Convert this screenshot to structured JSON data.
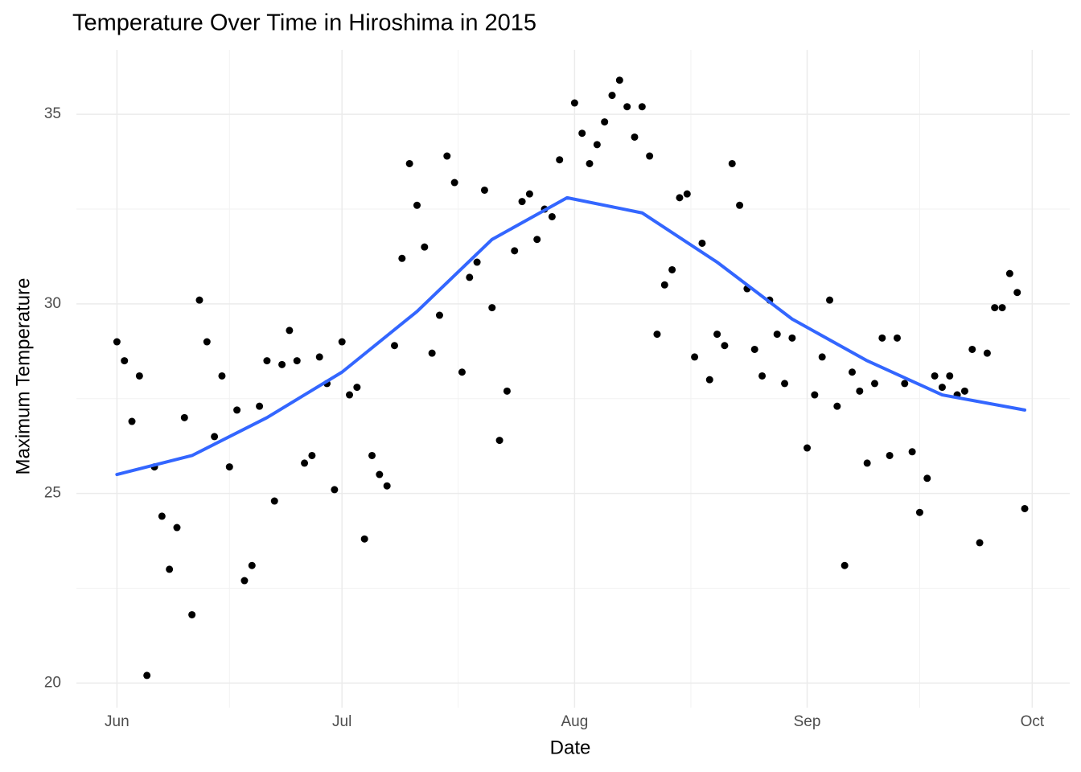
{
  "chart_data": {
    "type": "scatter",
    "title": "Temperature Over Time in Hiroshima in 2015",
    "x_label": "Date",
    "y_label": "Maximum Temperature",
    "xlim": [
      -5.4,
      127.0
    ],
    "ylim": [
      19.35,
      36.7
    ],
    "xticks": [
      {
        "value": 0,
        "label": "Jun"
      },
      {
        "value": 30,
        "label": "Jul"
      },
      {
        "value": 61,
        "label": "Aug"
      },
      {
        "value": 92,
        "label": "Sep"
      },
      {
        "value": 122,
        "label": "Oct"
      }
    ],
    "yticks": [
      20,
      25,
      30,
      35
    ],
    "grid": true,
    "series": [
      {
        "type": "scatter",
        "color": "#000000",
        "x": [
          0,
          1,
          2,
          3,
          4,
          5,
          6,
          7,
          8,
          9,
          10,
          11,
          12,
          13,
          14,
          15,
          16,
          17,
          18,
          19,
          20,
          21,
          22,
          23,
          24,
          25,
          26,
          27,
          28,
          29,
          30,
          31,
          32,
          33,
          34,
          35,
          36,
          37,
          38,
          39,
          40,
          41,
          42,
          43,
          44,
          45,
          46,
          47,
          48,
          49,
          50,
          51,
          52,
          53,
          54,
          55,
          56,
          57,
          58,
          59,
          61,
          62,
          63,
          64,
          65,
          66,
          67,
          68,
          69,
          70,
          71,
          72,
          73,
          74,
          75,
          76,
          77,
          78,
          79,
          80,
          81,
          82,
          83,
          84,
          85,
          86,
          87,
          88,
          89,
          90,
          92,
          93,
          94,
          95,
          96,
          97,
          98,
          99,
          100,
          101,
          102,
          103,
          104,
          105,
          106,
          107,
          108,
          109,
          110,
          111,
          112,
          113,
          114,
          115,
          116,
          117,
          118,
          119,
          120,
          121
        ],
        "values": [
          29.0,
          28.5,
          26.9,
          28.1,
          20.2,
          25.7,
          24.4,
          23.0,
          24.1,
          27.0,
          21.8,
          30.1,
          29.0,
          26.5,
          28.1,
          25.7,
          27.2,
          22.7,
          23.1,
          27.3,
          28.5,
          24.8,
          28.4,
          29.3,
          28.5,
          25.8,
          26.0,
          28.6,
          27.9,
          25.1,
          29.0,
          27.6,
          27.8,
          23.8,
          26.0,
          25.5,
          25.2,
          28.9,
          31.2,
          33.7,
          32.6,
          31.5,
          28.7,
          29.7,
          33.9,
          33.2,
          28.2,
          30.7,
          31.1,
          33.0,
          29.9,
          26.4,
          27.7,
          31.4,
          32.7,
          32.9,
          31.7,
          32.5,
          32.3,
          33.8,
          35.3,
          34.5,
          33.7,
          34.2,
          34.8,
          35.5,
          35.9,
          35.2,
          34.4,
          35.2,
          33.9,
          29.2,
          30.5,
          30.9,
          32.8,
          32.9,
          28.6,
          31.6,
          28.0,
          29.2,
          28.9,
          33.7,
          32.6,
          30.4,
          28.8,
          28.1,
          30.1,
          29.2,
          27.9,
          29.1,
          26.2,
          27.6,
          28.6,
          30.1,
          27.3,
          23.1,
          28.2,
          27.7,
          25.8,
          27.9,
          29.1,
          26.0,
          29.1,
          27.9,
          26.1,
          24.5,
          25.4,
          28.1,
          27.8,
          28.1,
          27.6,
          27.7,
          28.8,
          23.7,
          28.7,
          29.9,
          29.9,
          30.8,
          30.3,
          24.6
        ]
      },
      {
        "type": "line",
        "color": "#3366ff",
        "x": [
          0,
          10,
          20,
          30,
          40,
          50,
          60,
          70,
          80,
          90,
          100,
          110,
          121
        ],
        "values": [
          25.5,
          26.0,
          27.0,
          28.2,
          29.8,
          31.7,
          32.8,
          32.4,
          31.1,
          29.6,
          28.5,
          27.6,
          27.2
        ]
      }
    ]
  }
}
